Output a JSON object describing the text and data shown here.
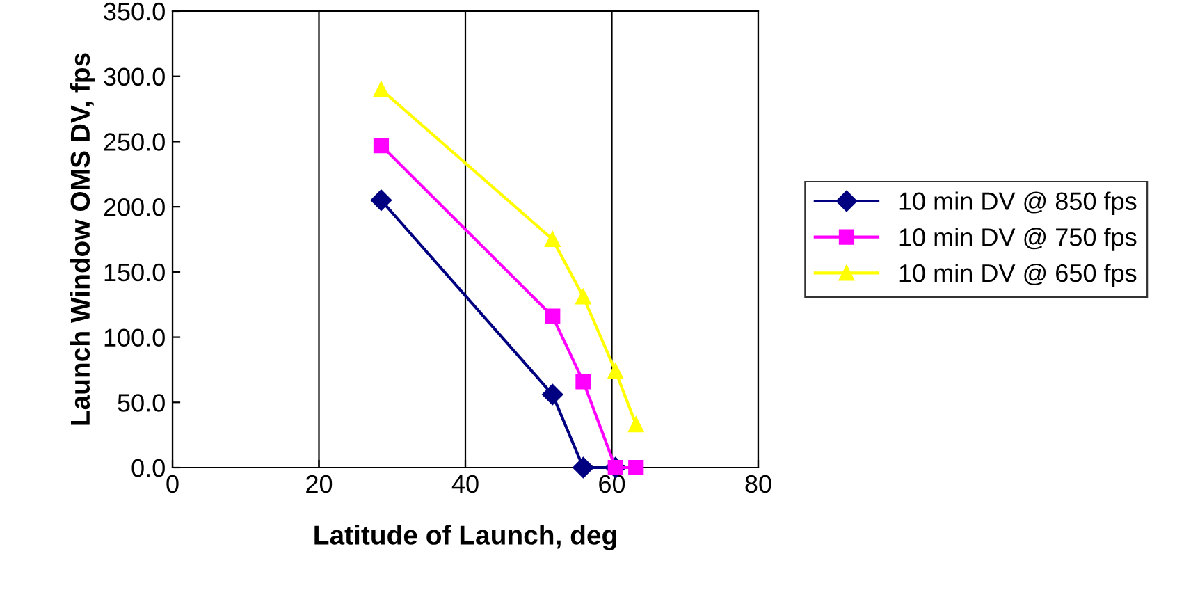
{
  "chart_data": {
    "type": "line",
    "xlabel": "Latitude of Launch, deg",
    "ylabel": "Launch Window OMS DV, fps",
    "xlim": [
      0,
      80
    ],
    "xticks": [
      0,
      20,
      40,
      60,
      80
    ],
    "ylim": [
      0,
      350
    ],
    "yticks": [
      {
        "value": 0,
        "label": "0.0"
      },
      {
        "value": 50,
        "label": "50.0"
      },
      {
        "value": 100,
        "label": "100.0"
      },
      {
        "value": 150,
        "label": "150.0"
      },
      {
        "value": 200,
        "label": "200.0"
      },
      {
        "value": 250,
        "label": "250.0"
      },
      {
        "value": 300,
        "label": "300.0"
      },
      {
        "value": 350,
        "label": "350.0"
      }
    ],
    "grid": "x",
    "legend": "right",
    "line_style": "solid",
    "series": [
      {
        "name": "10 min DV @ 850 fps",
        "color": "#000080",
        "marker": "diamond",
        "x": [
          28.5,
          51.9,
          56.1,
          60.5
        ],
        "values": [
          205,
          56,
          0,
          0
        ]
      },
      {
        "name": "10 min DV @ 750 fps",
        "color": "#ff00ff",
        "marker": "square",
        "x": [
          28.5,
          51.9,
          56.1,
          60.5,
          63.3
        ],
        "values": [
          247,
          116,
          66,
          0,
          0
        ]
      },
      {
        "name": "10 min DV @ 650 fps",
        "color": "#ffff00",
        "marker": "triangle",
        "x": [
          28.5,
          51.9,
          56.1,
          60.5,
          63.3
        ],
        "values": [
          290,
          175,
          131,
          74,
          33
        ]
      }
    ]
  }
}
